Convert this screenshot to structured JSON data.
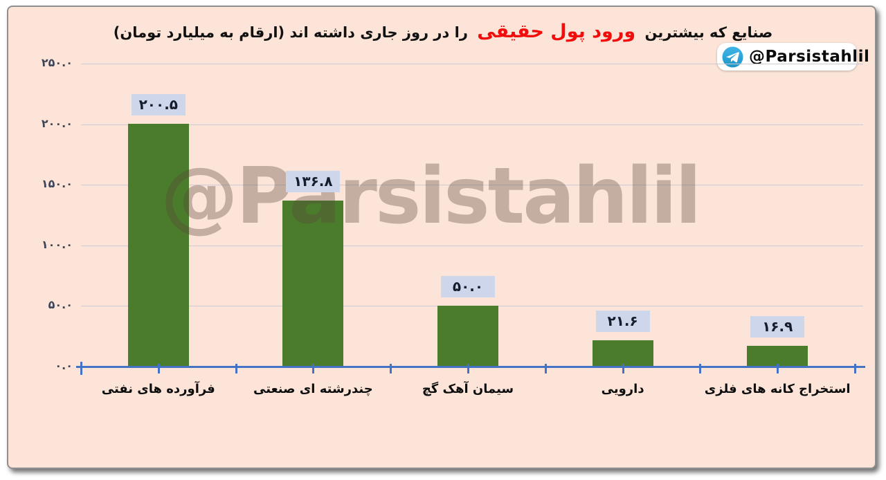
{
  "title": {
    "pre": "صنایع که بیشترین",
    "highlight": "ورود پول حقیقی",
    "post": "را در روز جاری داشته اند (ارقام به میلیارد تومان)"
  },
  "badge": {
    "label": "@Parsistahlil",
    "icon": "telegram-icon",
    "icon_color": "#2b9fd8"
  },
  "watermark": {
    "text": "@Parsistahlil"
  },
  "colors": {
    "panel_bg": "#fce5d8",
    "bar": "#4a7c2c",
    "axis": "#4472c4",
    "gridline": "#ccc9d2",
    "value_box_bg": "#cdd6eb",
    "title_red": "#f20d0d"
  },
  "chart_data": {
    "type": "bar",
    "title": "صنایع که بیشترین ورود پول حقیقی را در روز جاری داشته اند (ارقام به میلیارد تومان)",
    "unit": "میلیارد تومان",
    "categories": [
      "فرآورده های نفتی",
      "چندرشته ای صنعتی",
      "سیمان آهک گچ",
      "دارویی",
      "استخراج کانه های فلزی"
    ],
    "values": [
      200.5,
      136.8,
      50.0,
      21.6,
      16.9
    ],
    "value_labels": [
      "۲۰۰.۵",
      "۱۳۶.۸",
      "۵۰.۰",
      "۲۱.۶",
      "۱۶.۹"
    ],
    "y_ticks": [
      {
        "value": 250,
        "label": "۲۵۰.۰"
      },
      {
        "value": 200,
        "label": "۲۰۰.۰"
      },
      {
        "value": 150,
        "label": "۱۵۰.۰"
      },
      {
        "value": 100,
        "label": "۱۰۰.۰"
      },
      {
        "value": 50,
        "label": "۵۰.۰"
      },
      {
        "value": 0,
        "label": "۰.۰"
      }
    ],
    "ylim": [
      0,
      250
    ],
    "grid": true,
    "legend": "none"
  }
}
